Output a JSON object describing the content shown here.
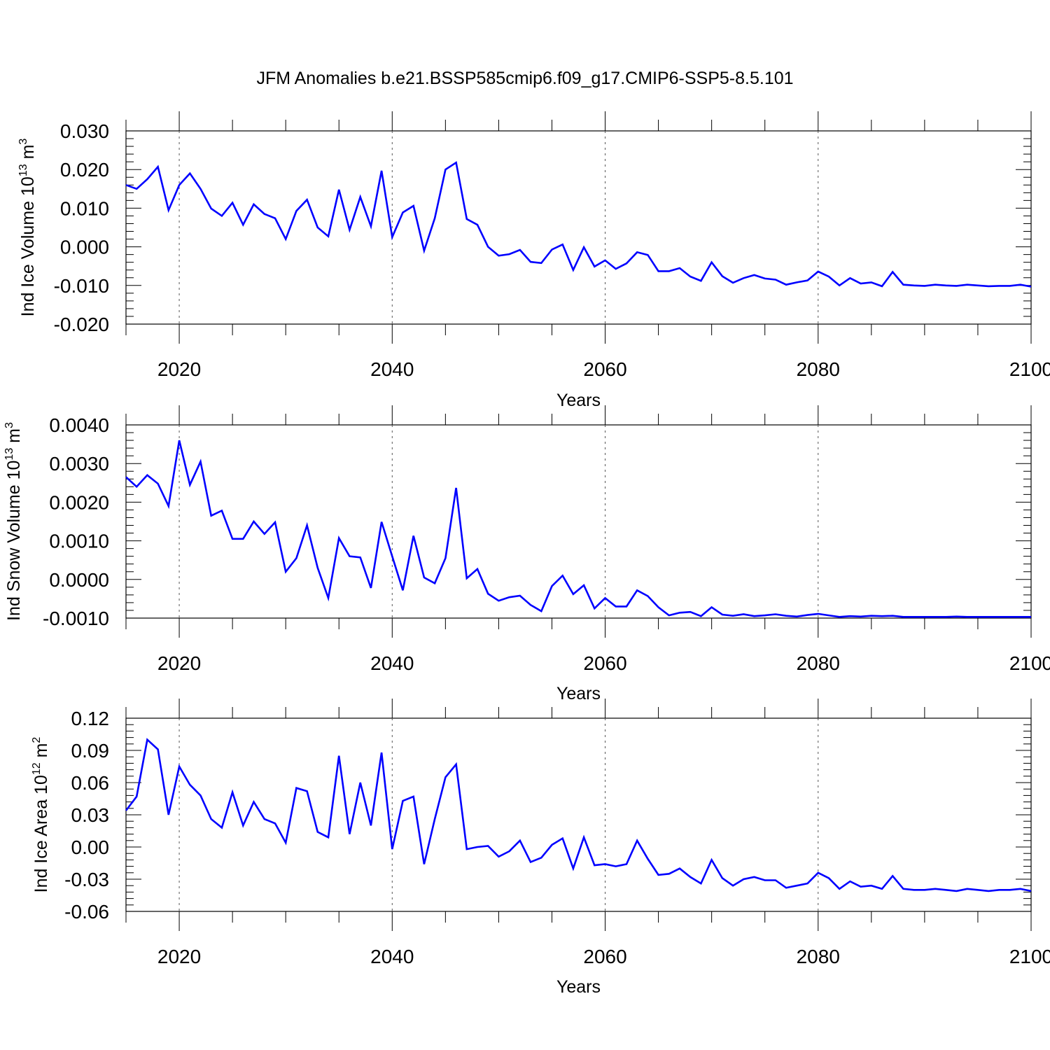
{
  "title": "JFM Anomalies b.e21.BSSP585cmip6.f09_g17.CMIP6-SSP5-8.5.101",
  "line_color": "#0000ff",
  "chart_data": [
    {
      "type": "line",
      "name": "ice-volume",
      "ylabel": "Ind Ice Volume 10",
      "ylabel_sup": "13",
      "ylabel_unit": "m",
      "ylabel_unit_sup": "3",
      "xlabel": "Years",
      "xlim": [
        2015,
        2100
      ],
      "ylim": [
        -0.02,
        0.03
      ],
      "yticks": [
        -0.02,
        -0.01,
        0.0,
        0.01,
        0.02,
        0.03
      ],
      "ytick_labels": [
        "-0.020",
        "-0.010",
        "0.000",
        "0.010",
        "0.020",
        "0.030"
      ],
      "xticks": [
        2020,
        2040,
        2060,
        2080,
        2100
      ],
      "xtick_labels": [
        "2020",
        "2040",
        "2060",
        "2080",
        "2100"
      ],
      "x_start": 2015,
      "values": [
        0.016,
        0.015,
        0.0175,
        0.0207,
        0.0095,
        0.016,
        0.019,
        0.015,
        0.0099,
        0.008,
        0.0114,
        0.0057,
        0.011,
        0.0085,
        0.0074,
        0.002,
        0.0093,
        0.0122,
        0.005,
        0.0027,
        0.0148,
        0.0044,
        0.0129,
        0.0053,
        0.0197,
        0.0025,
        0.0089,
        0.0106,
        -0.001,
        0.0074,
        0.02,
        0.0218,
        0.0072,
        0.0057,
        0.0,
        -0.0023,
        -0.0019,
        -0.0008,
        -0.0039,
        -0.0042,
        -0.0007,
        0.0006,
        -0.006,
        -0.0001,
        -0.0051,
        -0.0035,
        -0.0057,
        -0.0043,
        -0.0014,
        -0.0021,
        -0.0063,
        -0.0063,
        -0.0055,
        -0.0077,
        -0.0088,
        -0.004,
        -0.0076,
        -0.0093,
        -0.0081,
        -0.0073,
        -0.0082,
        -0.0085,
        -0.0098,
        -0.0092,
        -0.0087,
        -0.0064,
        -0.0077,
        -0.01,
        -0.0081,
        -0.0095,
        -0.0092,
        -0.0102,
        -0.0065,
        -0.0098,
        -0.01,
        -0.0101,
        -0.0098,
        -0.01,
        -0.0101,
        -0.0098,
        -0.01,
        -0.0102,
        -0.0101,
        -0.0101,
        -0.0098,
        -0.0103
      ]
    },
    {
      "type": "line",
      "name": "snow-volume",
      "ylabel": "Ind Snow Volume 10",
      "ylabel_sup": "13",
      "ylabel_unit": "m",
      "ylabel_unit_sup": "3",
      "xlabel": "Years",
      "xlim": [
        2015,
        2100
      ],
      "ylim": [
        -0.001,
        0.004
      ],
      "yticks": [
        -0.001,
        0.0,
        0.001,
        0.002,
        0.003,
        0.004
      ],
      "ytick_labels": [
        "-0.0010",
        "0.0000",
        "0.0010",
        "0.0020",
        "0.0030",
        "0.0040"
      ],
      "xticks": [
        2020,
        2040,
        2060,
        2080,
        2100
      ],
      "xtick_labels": [
        "2020",
        "2040",
        "2060",
        "2080",
        "2100"
      ],
      "x_start": 2015,
      "values": [
        0.00265,
        0.0024,
        0.0027,
        0.00248,
        0.0019,
        0.0036,
        0.00245,
        0.00305,
        0.00165,
        0.00178,
        0.00105,
        0.00105,
        0.0015,
        0.00118,
        0.00148,
        0.0002,
        0.00055,
        0.0014,
        0.0003,
        -0.00048,
        0.00107,
        0.0006,
        0.00057,
        -0.00022,
        0.00149,
        0.0006,
        -0.00028,
        0.00113,
        5e-05,
        -0.0001,
        0.00055,
        0.00237,
        3e-05,
        0.00027,
        -0.00037,
        -0.00055,
        -0.00046,
        -0.00042,
        -0.00066,
        -0.00082,
        -0.00017,
        0.0001,
        -0.00038,
        -0.00015,
        -0.00075,
        -0.00048,
        -0.0007,
        -0.0007,
        -0.00028,
        -0.00043,
        -0.00072,
        -0.00093,
        -0.00086,
        -0.00084,
        -0.00095,
        -0.00072,
        -0.00091,
        -0.00094,
        -0.0009,
        -0.00095,
        -0.00093,
        -0.0009,
        -0.00094,
        -0.00096,
        -0.00092,
        -0.00089,
        -0.00093,
        -0.00097,
        -0.00095,
        -0.00096,
        -0.00094,
        -0.00095,
        -0.00094,
        -0.00097,
        -0.00097,
        -0.00097,
        -0.00097,
        -0.00097,
        -0.00096,
        -0.00097,
        -0.00097,
        -0.00097,
        -0.00097,
        -0.00097,
        -0.00097,
        -0.00097
      ]
    },
    {
      "type": "line",
      "name": "ice-area",
      "ylabel": "Ind Ice Area 10",
      "ylabel_sup": "12",
      "ylabel_unit": "m",
      "ylabel_unit_sup": "2",
      "xlabel": "Years",
      "xlim": [
        2015,
        2100
      ],
      "ylim": [
        -0.06,
        0.12
      ],
      "yticks": [
        -0.06,
        -0.03,
        0.0,
        0.03,
        0.06,
        0.09,
        0.12
      ],
      "ytick_labels": [
        "-0.06",
        "-0.03",
        "0.00",
        "0.03",
        "0.06",
        "0.09",
        "0.12"
      ],
      "xticks": [
        2020,
        2040,
        2060,
        2080,
        2100
      ],
      "xtick_labels": [
        "2020",
        "2040",
        "2060",
        "2080",
        "2100"
      ],
      "x_start": 2015,
      "values": [
        0.034,
        0.047,
        0.1,
        0.091,
        0.03,
        0.075,
        0.058,
        0.048,
        0.026,
        0.018,
        0.051,
        0.02,
        0.042,
        0.026,
        0.022,
        0.004,
        0.055,
        0.052,
        0.014,
        0.009,
        0.085,
        0.012,
        0.06,
        0.02,
        0.088,
        -0.002,
        0.043,
        0.047,
        -0.016,
        0.026,
        0.065,
        0.077,
        -0.002,
        0.0,
        0.001,
        -0.009,
        -0.004,
        0.006,
        -0.014,
        -0.01,
        0.002,
        0.008,
        -0.02,
        0.009,
        -0.017,
        -0.016,
        -0.018,
        -0.016,
        0.006,
        -0.011,
        -0.026,
        -0.025,
        -0.02,
        -0.028,
        -0.034,
        -0.012,
        -0.029,
        -0.036,
        -0.03,
        -0.028,
        -0.031,
        -0.031,
        -0.038,
        -0.036,
        -0.034,
        -0.024,
        -0.029,
        -0.039,
        -0.032,
        -0.037,
        -0.036,
        -0.039,
        -0.027,
        -0.039,
        -0.04,
        -0.04,
        -0.039,
        -0.04,
        -0.041,
        -0.039,
        -0.04,
        -0.041,
        -0.04,
        -0.04,
        -0.039,
        -0.041
      ]
    }
  ]
}
